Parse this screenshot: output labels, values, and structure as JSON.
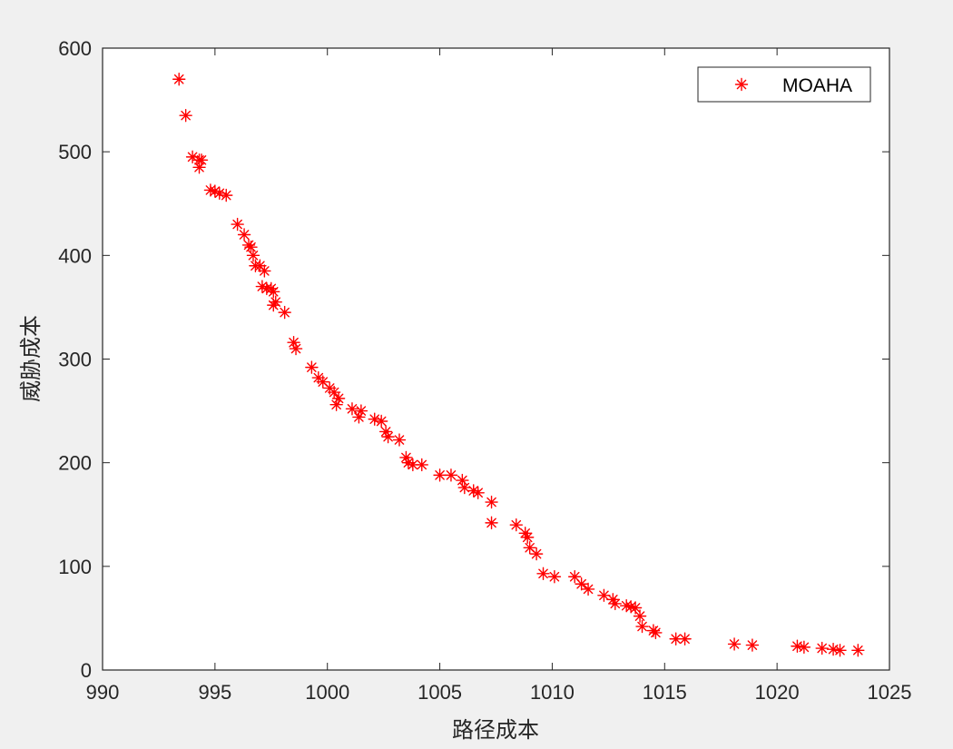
{
  "chart_data": {
    "type": "scatter",
    "xlabel": "路径成本",
    "ylabel": "威胁成本",
    "xlim": [
      990,
      1025
    ],
    "ylim": [
      0,
      600
    ],
    "xticks": [
      "990",
      "995",
      "1000",
      "1005",
      "1010",
      "1015",
      "1020",
      "1025"
    ],
    "yticks": [
      "0",
      "100",
      "200",
      "300",
      "400",
      "500",
      "600"
    ],
    "grid": false,
    "legend_position": "top-right",
    "colors": {
      "marker": "#ff0000",
      "axis": "#262626",
      "background": "#f0f0f0",
      "plot": "#ffffff"
    },
    "series": [
      {
        "name": "MOAHA",
        "marker": "asterisk",
        "x": [
          993.4,
          993.7,
          994.0,
          994.3,
          994.4,
          994.3,
          994.8,
          995.0,
          995.2,
          995.5,
          996.0,
          996.3,
          996.5,
          996.6,
          996.7,
          996.8,
          997.0,
          997.2,
          997.1,
          997.5,
          997.6,
          997.7,
          997.6,
          997.3,
          998.1,
          998.5,
          998.6,
          999.3,
          999.6,
          999.8,
          1000.1,
          1000.3,
          1000.5,
          1000.4,
          1001.1,
          1001.5,
          1001.4,
          1002.1,
          1002.4,
          1002.6,
          1002.7,
          1003.2,
          1003.5,
          1003.6,
          1003.8,
          1004.2,
          1005.0,
          1005.5,
          1006.0,
          1006.1,
          1006.5,
          1006.7,
          1007.3,
          1007.3,
          1008.4,
          1008.8,
          1008.9,
          1009.0,
          1009.3,
          1009.6,
          1010.1,
          1011.0,
          1011.3,
          1011.6,
          1012.3,
          1012.7,
          1012.8,
          1013.3,
          1013.5,
          1013.7,
          1013.9,
          1014.0,
          1014.5,
          1014.6,
          1015.5,
          1015.9,
          1018.1,
          1018.9,
          1020.9,
          1021.2,
          1022.0,
          1022.5,
          1022.8,
          1023.6
        ],
        "y": [
          570,
          535,
          495,
          492,
          492,
          485,
          463,
          462,
          460,
          458,
          430,
          420,
          410,
          408,
          400,
          390,
          390,
          385,
          370,
          368,
          365,
          355,
          352,
          368,
          345,
          316,
          310,
          292,
          282,
          278,
          272,
          268,
          262,
          256,
          252,
          250,
          244,
          242,
          240,
          230,
          225,
          222,
          205,
          200,
          198,
          198,
          188,
          188,
          183,
          176,
          173,
          171,
          162,
          142,
          140,
          132,
          128,
          118,
          112,
          93,
          90,
          90,
          83,
          78,
          72,
          68,
          64,
          62,
          61,
          60,
          52,
          42,
          38,
          36,
          30,
          30,
          25,
          24,
          23,
          22,
          21,
          20,
          19,
          19
        ]
      }
    ]
  }
}
